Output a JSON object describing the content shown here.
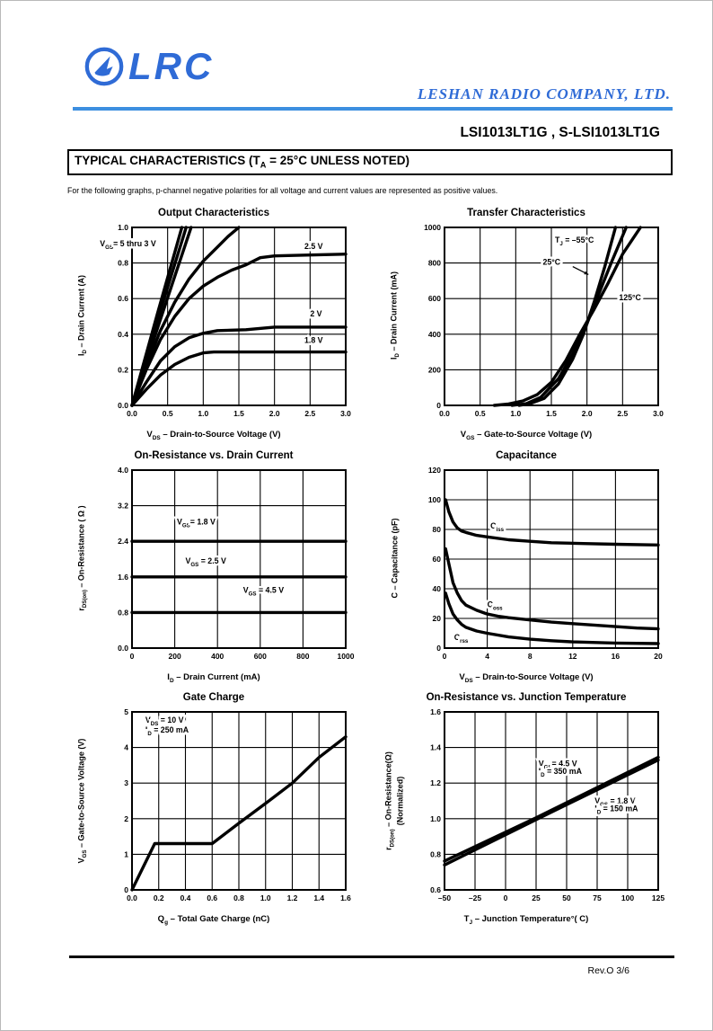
{
  "colors": {
    "brand_blue": "#2f6bd6",
    "rule_blue": "#3d8fe0",
    "ink": "#000000"
  },
  "header": {
    "logo_text": "LRC",
    "logo_icon": "lrc-bird-in-circle",
    "company": "LESHAN RADIO COMPANY, LTD.",
    "part_numbers": "LSI1013LT1G , S-LSI1013LT1G",
    "section_title": "TYPICAL CHARACTERISTICS (T_{A} = 25°C UNLESS NOTED)",
    "note": "For the following graphs, p-channel negative polarities for all voltage and current values are represented as positive values."
  },
  "footer": {
    "revision": "Rev.O  3/6"
  },
  "chart_data": [
    {
      "id": "output-characteristics",
      "type": "line",
      "title": "Output Characteristics",
      "xlabel": "V_{DS}  –  Drain-to-Source Voltage (V)",
      "ylabel": [
        "I_{D}  –  Drain Current (A)"
      ],
      "xlim": [
        0,
        3
      ],
      "ylim": [
        0,
        1
      ],
      "grid": true,
      "xticks": {
        "values": [
          0,
          0.5,
          1,
          1.5,
          2,
          2.5,
          3
        ],
        "labels": [
          "0.0",
          "0.5",
          "1.0",
          "1.5",
          "2.0",
          "2.5",
          "3.0"
        ]
      },
      "yticks": {
        "values": [
          0,
          0.2,
          0.4,
          0.6,
          0.8,
          1
        ],
        "labels": [
          "0.0",
          "0.2",
          "0.4",
          "0.6",
          "0.8",
          "1.0"
        ]
      },
      "series": [
        {
          "name": "VGS=5V",
          "points": [
            [
              0,
              0
            ],
            [
              0.36,
              0.52
            ],
            [
              0.7,
              1.0
            ]
          ]
        },
        {
          "name": "VGS=4V",
          "points": [
            [
              0,
              0
            ],
            [
              0.39,
              0.52
            ],
            [
              0.76,
              1.0
            ]
          ]
        },
        {
          "name": "VGS=3.5V",
          "points": [
            [
              0,
              0
            ],
            [
              0.43,
              0.52
            ],
            [
              0.83,
              1.0
            ]
          ]
        },
        {
          "name": "VGS=3V",
          "points": [
            [
              0,
              0
            ],
            [
              0.2,
              0.22
            ],
            [
              0.4,
              0.42
            ],
            [
              0.6,
              0.58
            ],
            [
              0.8,
              0.71
            ],
            [
              1.0,
              0.81
            ],
            [
              1.2,
              0.89
            ],
            [
              1.35,
              0.95
            ],
            [
              1.5,
              1.0
            ]
          ]
        },
        {
          "name": "VGS=2.5V",
          "points": [
            [
              0,
              0
            ],
            [
              0.2,
              0.2
            ],
            [
              0.4,
              0.37
            ],
            [
              0.6,
              0.5
            ],
            [
              0.8,
              0.6
            ],
            [
              1.0,
              0.67
            ],
            [
              1.2,
              0.72
            ],
            [
              1.4,
              0.76
            ],
            [
              1.6,
              0.79
            ],
            [
              1.8,
              0.83
            ],
            [
              2.0,
              0.84
            ],
            [
              2.5,
              0.845
            ],
            [
              3.0,
              0.85
            ]
          ]
        },
        {
          "name": "VGS=2V",
          "points": [
            [
              0,
              0
            ],
            [
              0.2,
              0.13
            ],
            [
              0.4,
              0.25
            ],
            [
              0.6,
              0.33
            ],
            [
              0.8,
              0.38
            ],
            [
              1.0,
              0.405
            ],
            [
              1.2,
              0.42
            ],
            [
              1.6,
              0.425
            ],
            [
              2.0,
              0.44
            ],
            [
              3.0,
              0.44
            ]
          ]
        },
        {
          "name": "VGS=1.8V",
          "points": [
            [
              0,
              0
            ],
            [
              0.2,
              0.09
            ],
            [
              0.4,
              0.17
            ],
            [
              0.6,
              0.23
            ],
            [
              0.8,
              0.27
            ],
            [
              1.0,
              0.295
            ],
            [
              1.15,
              0.3
            ],
            [
              3.0,
              0.3
            ]
          ]
        }
      ],
      "annotations": [
        {
          "text": "V_{GS}= 5 thru 3 V",
          "x": -0.45,
          "y": 0.895
        },
        {
          "text": "2.5 V",
          "x": 2.42,
          "y": 0.88
        },
        {
          "text": "2 V",
          "x": 2.5,
          "y": 0.5
        },
        {
          "text": "1.8 V",
          "x": 2.42,
          "y": 0.35
        }
      ]
    },
    {
      "id": "transfer-characteristics",
      "type": "line",
      "title": "Transfer Characteristics",
      "xlabel": "V_{GS}  –  Gate-to-Source Voltage (V)",
      "ylabel": [
        "I_{D}  –  Drain Current (mA)"
      ],
      "xlim": [
        0,
        3
      ],
      "ylim": [
        0,
        1000
      ],
      "grid": true,
      "xticks": {
        "values": [
          0,
          0.5,
          1,
          1.5,
          2,
          2.5,
          3
        ],
        "labels": [
          "0.0",
          "0.5",
          "1.0",
          "1.5",
          "2.0",
          "2.5",
          "3.0"
        ]
      },
      "yticks": {
        "values": [
          0,
          200,
          400,
          600,
          800,
          1000
        ],
        "labels": [
          "0",
          "200",
          "400",
          "600",
          "800",
          "1000"
        ]
      },
      "series": [
        {
          "name": "TJ=-55C",
          "points": [
            [
              1.05,
              0
            ],
            [
              1.2,
              10
            ],
            [
              1.4,
              40
            ],
            [
              1.6,
              120
            ],
            [
              1.8,
              260
            ],
            [
              1.95,
              400
            ],
            [
              2.1,
              580
            ],
            [
              2.25,
              780
            ],
            [
              2.4,
              1000
            ]
          ]
        },
        {
          "name": "TJ=25C",
          "points": [
            [
              0.95,
              0
            ],
            [
              1.15,
              10
            ],
            [
              1.35,
              45
            ],
            [
              1.6,
              150
            ],
            [
              1.8,
              290
            ],
            [
              2.0,
              460
            ],
            [
              2.2,
              660
            ],
            [
              2.35,
              810
            ],
            [
              2.55,
              1000
            ]
          ]
        },
        {
          "name": "TJ=125C",
          "points": [
            [
              0.7,
              0
            ],
            [
              0.9,
              8
            ],
            [
              1.1,
              25
            ],
            [
              1.3,
              60
            ],
            [
              1.5,
              130
            ],
            [
              1.7,
              250
            ],
            [
              1.9,
              400
            ],
            [
              2.1,
              540
            ],
            [
              2.3,
              690
            ],
            [
              2.5,
              850
            ],
            [
              2.75,
              1000
            ]
          ]
        }
      ],
      "annotations": [
        {
          "text": "T_{J} = –55°C",
          "x": 1.55,
          "y": 915
        },
        {
          "text": "25°C",
          "x": 1.38,
          "y": 790
        },
        {
          "text": "125°C",
          "x": 2.45,
          "y": 590
        }
      ],
      "arrows": [
        {
          "x1": 1.8,
          "y1": 780,
          "x2": 2.02,
          "y2": 735
        }
      ]
    },
    {
      "id": "on-resistance-vs-drain-current",
      "type": "line",
      "title": "On-Resistance vs. Drain Current",
      "xlabel": "I_{D}  –  Drain Current (mA)",
      "ylabel": [
        "r_{DS(on)}  –  On-Resistance ( Ω )"
      ],
      "xlim": [
        0,
        1000
      ],
      "ylim": [
        0,
        4
      ],
      "grid": true,
      "xticks": {
        "values": [
          0,
          200,
          400,
          600,
          800,
          1000
        ],
        "labels": [
          "0",
          "200",
          "400",
          "600",
          "800",
          "1000"
        ]
      },
      "yticks": {
        "values": [
          0,
          0.8,
          1.6,
          2.4,
          3.2,
          4
        ],
        "labels": [
          "0.0",
          "0.8",
          "1.6",
          "2.4",
          "3.2",
          "4.0"
        ]
      },
      "series": [
        {
          "name": "VGS=1.8V",
          "points": [
            [
              0,
              2.4
            ],
            [
              1000,
              2.4
            ]
          ]
        },
        {
          "name": "VGS=2.5V",
          "points": [
            [
              0,
              1.6
            ],
            [
              1000,
              1.6
            ]
          ]
        },
        {
          "name": "VGS=4.5V",
          "points": [
            [
              0,
              0.8
            ],
            [
              1000,
              0.8
            ]
          ]
        }
      ],
      "annotations": [
        {
          "text": "V_{GS}= 1.8 V",
          "x": 210,
          "y": 2.78
        },
        {
          "text": "V_{GS} = 2.5 V",
          "x": 250,
          "y": 1.9
        },
        {
          "text": "V_{GS} = 4.5 V",
          "x": 520,
          "y": 1.24
        }
      ]
    },
    {
      "id": "capacitance",
      "type": "line",
      "title": "Capacitance",
      "xlabel": "V_{DS}  –  Drain-to-Source Voltage (V)",
      "ylabel": [
        "C  –  Capacitance (pF)"
      ],
      "xlim": [
        0,
        20
      ],
      "ylim": [
        0,
        120
      ],
      "grid": true,
      "xticks": {
        "values": [
          0,
          4,
          8,
          12,
          16,
          20
        ],
        "labels": [
          "0",
          "4",
          "8",
          "12",
          "16",
          "20"
        ]
      },
      "yticks": {
        "values": [
          0,
          20,
          40,
          60,
          80,
          100,
          120
        ],
        "labels": [
          "0",
          "20",
          "40",
          "60",
          "80",
          "100",
          "120"
        ]
      },
      "series": [
        {
          "name": "Ciss",
          "points": [
            [
              0.1,
              100
            ],
            [
              0.4,
              92
            ],
            [
              0.8,
              85
            ],
            [
              1.2,
              81
            ],
            [
              1.6,
              79
            ],
            [
              2,
              78
            ],
            [
              3,
              76
            ],
            [
              4,
              75
            ],
            [
              6,
              73
            ],
            [
              8,
              72
            ],
            [
              10,
              71
            ],
            [
              13,
              70.5
            ],
            [
              16,
              70
            ],
            [
              20,
              69.5
            ]
          ]
        },
        {
          "name": "Coss",
          "points": [
            [
              0.1,
              67
            ],
            [
              0.4,
              57
            ],
            [
              0.8,
              44
            ],
            [
              1.2,
              37
            ],
            [
              1.6,
              32
            ],
            [
              2,
              29
            ],
            [
              3,
              25.5
            ],
            [
              4,
              23
            ],
            [
              5,
              21.5
            ],
            [
              6,
              20.5
            ],
            [
              8,
              19
            ],
            [
              10,
              17.5
            ],
            [
              12,
              16.5
            ],
            [
              14,
              15.5
            ],
            [
              16,
              14.5
            ],
            [
              18,
              13.5
            ],
            [
              20,
              13
            ]
          ]
        },
        {
          "name": "Crss",
          "points": [
            [
              0.1,
              37
            ],
            [
              0.4,
              30
            ],
            [
              0.8,
              23
            ],
            [
              1.2,
              19
            ],
            [
              1.6,
              16
            ],
            [
              2,
              14
            ],
            [
              3,
              11.5
            ],
            [
              4,
              10
            ],
            [
              6,
              7.5
            ],
            [
              8,
              6
            ],
            [
              10,
              5
            ],
            [
              12,
              4.2
            ],
            [
              16,
              3.4
            ],
            [
              20,
              3
            ]
          ]
        }
      ],
      "annotations": [
        {
          "text": "C_{iss}",
          "x": 4.3,
          "y": 80.5
        },
        {
          "text": "C_{oss}",
          "x": 4.0,
          "y": 27.5
        },
        {
          "text": "C_{rss}",
          "x": 0.9,
          "y": 5.5
        }
      ]
    },
    {
      "id": "gate-charge",
      "type": "line",
      "title": "Gate Charge",
      "xlabel": "Q_{g} –  Total Gate Charge (nC)",
      "ylabel": [
        "V_{GS}  –  Gate-to-Source Voltage (V)"
      ],
      "xlim": [
        0,
        1.6
      ],
      "ylim": [
        0,
        5
      ],
      "grid": true,
      "xticks": {
        "values": [
          0,
          0.2,
          0.4,
          0.6,
          0.8,
          1.0,
          1.2,
          1.4,
          1.6
        ],
        "labels": [
          "0.0",
          "0.2",
          "0.4",
          "0.6",
          "0.8",
          "1.0",
          "1.2",
          "1.4",
          "1.6"
        ]
      },
      "yticks": {
        "values": [
          0,
          1,
          2,
          3,
          4,
          5
        ],
        "labels": [
          "0",
          "1",
          "2",
          "3",
          "4",
          "5"
        ]
      },
      "series": [
        {
          "name": "VGS vs Qg",
          "points": [
            [
              0,
              0
            ],
            [
              0.17,
              1.3
            ],
            [
              0.6,
              1.3
            ],
            [
              0.8,
              1.87
            ],
            [
              1.0,
              2.43
            ],
            [
              1.2,
              3.0
            ],
            [
              1.4,
              3.72
            ],
            [
              1.6,
              4.3
            ]
          ]
        }
      ],
      "annotations": [
        {
          "text": "V_{DS} = 10 V",
          "x": 0.1,
          "y": 4.7
        },
        {
          "text": "I_{D} = 250 mA",
          "x": 0.1,
          "y": 4.42
        }
      ]
    },
    {
      "id": "on-resistance-vs-junction-temperature",
      "type": "line",
      "title": "On-Resistance vs. Junction Temperature",
      "xlabel": "T_{J} – Junction Temperature°( C)",
      "ylabel": [
        "r_{DS(on)}  –  On-Resistance(Ω)",
        "(Normalized)"
      ],
      "xlim": [
        -50,
        125
      ],
      "ylim": [
        0.6,
        1.6
      ],
      "grid": true,
      "xticks": {
        "values": [
          -50,
          -25,
          0,
          25,
          50,
          75,
          100,
          125
        ],
        "labels": [
          "–50",
          "–25",
          "0",
          "25",
          "50",
          "75",
          "100",
          "125"
        ]
      },
      "yticks": {
        "values": [
          0.6,
          0.8,
          1.0,
          1.2,
          1.4,
          1.6
        ],
        "labels": [
          "0.6",
          "0.8",
          "1.0",
          "1.2",
          "1.4",
          "1.6"
        ]
      },
      "series": [
        {
          "name": "VGS=4.5V ID=350mA",
          "points": [
            [
              -50,
              0.762
            ],
            [
              25,
              1.005
            ],
            [
              125,
              1.345
            ]
          ]
        },
        {
          "name": "VGS=1.8V ID=150mA",
          "points": [
            [
              -50,
              0.74
            ],
            [
              25,
              0.995
            ],
            [
              125,
              1.33
            ]
          ]
        }
      ],
      "annotations": [
        {
          "text": "V_{GS}= 4.5 V",
          "x": 27,
          "y": 1.295
        },
        {
          "text": "I_{D} = 350 mA",
          "x": 27,
          "y": 1.252
        },
        {
          "text": "V_{GS} = 1.8 V",
          "x": 73,
          "y": 1.085
        },
        {
          "text": "I_{D} = 150 mA",
          "x": 73,
          "y": 1.042
        }
      ]
    }
  ]
}
